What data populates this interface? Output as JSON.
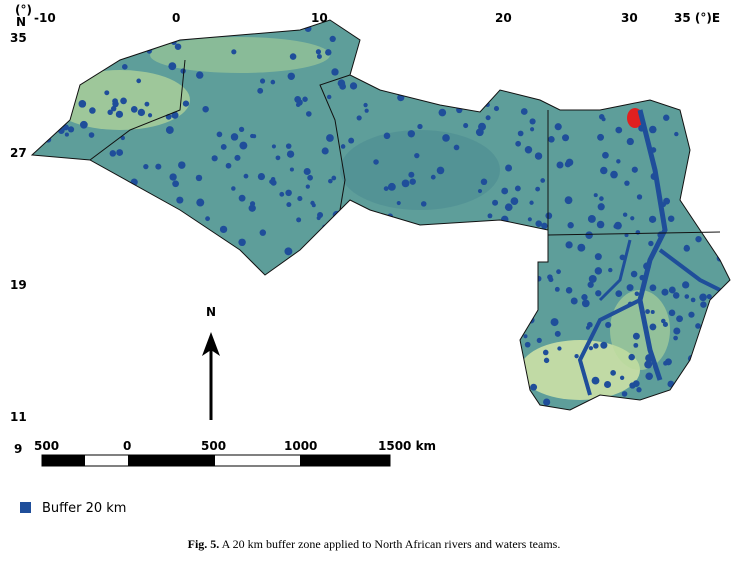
{
  "map": {
    "longitude_labels": [
      "-10",
      "0",
      "10",
      "20",
      "30",
      "35 (°)E"
    ],
    "latitude_unit": [
      "(°)",
      "N"
    ],
    "latitude_labels": [
      "35",
      "27",
      "19",
      "11",
      "9"
    ],
    "north_arrow": "N",
    "scale_labels": [
      "500",
      "0",
      "500",
      "1000",
      "1500 km"
    ],
    "legend": "Buffer 20 km"
  },
  "caption": {
    "label": "Fig. 5.",
    "text": "A 20 km buffer zone applied to North African rivers and waters teams."
  }
}
